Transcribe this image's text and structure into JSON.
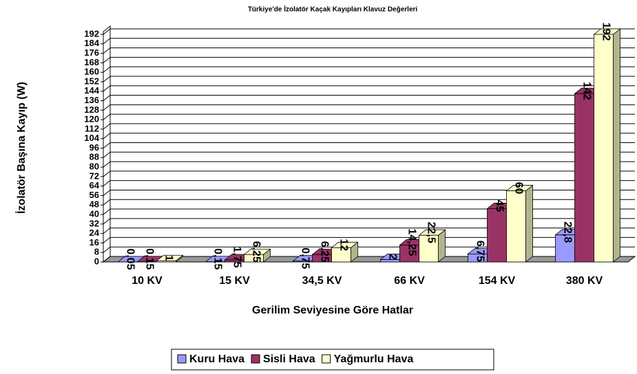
{
  "chart_data": {
    "type": "bar3d",
    "title": "Türkiye'de İzolatör Kaçak Kayıpları Klavuz Değerleri",
    "x_label": "Gerilim Seviyesine Göre Hatlar",
    "y_label": "İzolatör Başına Kayıp (W)",
    "categories": [
      "10 KV",
      "15 KV",
      "34,5 KV",
      "66 KV",
      "154 KV",
      "380 KV"
    ],
    "series": [
      {
        "name": "Kuru Hava",
        "color": "#9999ff",
        "side": "#6b6bb3",
        "values": [
          0.05,
          0.15,
          0.75,
          2,
          6.75,
          22.8
        ],
        "value_labels": [
          "0,05",
          "0,15",
          "0,75",
          "2",
          "6,75",
          "22,8"
        ]
      },
      {
        "name": "Sisli Hava",
        "color": "#993366",
        "side": "#6b2447",
        "values": [
          0.15,
          1.75,
          6.25,
          14.25,
          45,
          142
        ],
        "value_labels": [
          "0,15",
          "1,75",
          "6,25",
          "14,25",
          "45",
          "142"
        ]
      },
      {
        "name": "Yağmurlu Hava",
        "color": "#ffffcc",
        "side": "#b3b38f",
        "values": [
          1,
          6.25,
          12,
          22.5,
          60,
          192
        ],
        "value_labels": [
          "1",
          "6,25",
          "12",
          "22,5",
          "60",
          "192"
        ]
      }
    ],
    "ylim": [
      0,
      192
    ],
    "yticks": [
      0,
      8,
      16,
      24,
      32,
      40,
      48,
      56,
      64,
      72,
      80,
      88,
      96,
      104,
      112,
      120,
      128,
      136,
      144,
      152,
      160,
      168,
      176,
      184,
      192
    ],
    "grid": true,
    "legend": "bottom"
  }
}
